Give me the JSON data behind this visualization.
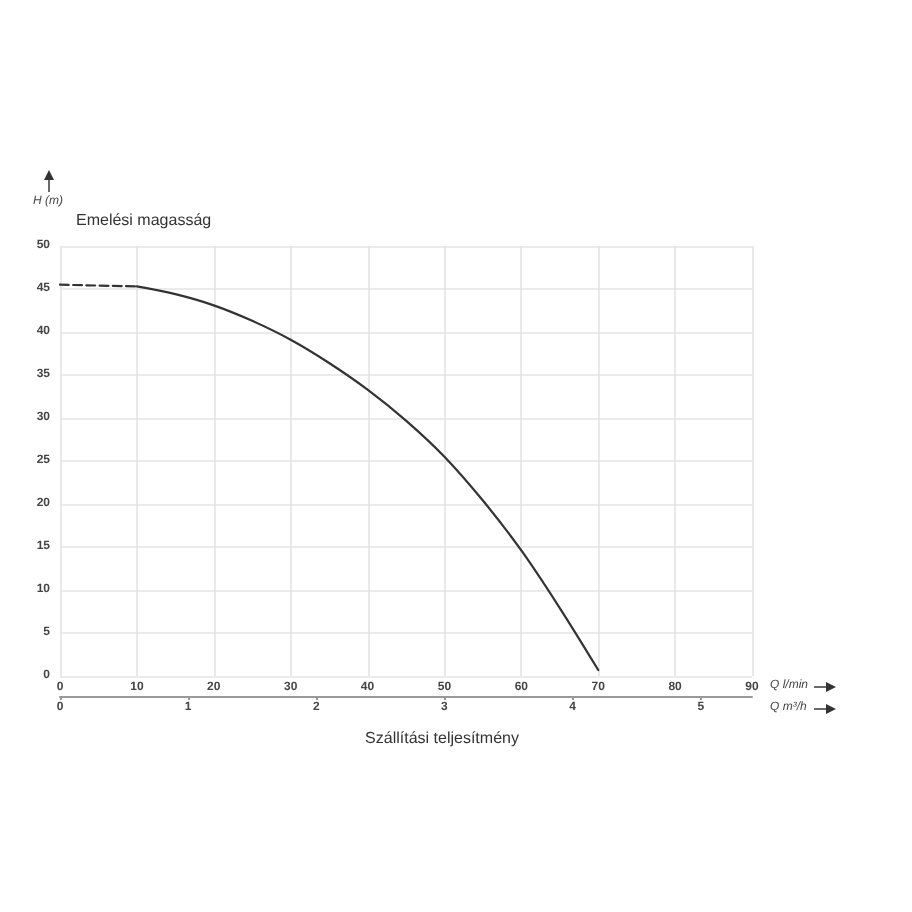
{
  "chart_data": {
    "type": "line",
    "xlabel": "Szállítási teljesítmény",
    "ylabel": "Emelési magasság",
    "annotations": [
      "H (m)",
      "Q l/min",
      "Q m³/h"
    ],
    "xlim": [
      0,
      90
    ],
    "xticks": [
      0,
      10,
      20,
      30,
      40,
      50,
      60,
      70,
      80,
      90
    ],
    "x2lim": [
      0,
      5.4
    ],
    "x2ticks": [
      0,
      1,
      2,
      3,
      4,
      5
    ],
    "ylim": [
      0,
      50
    ],
    "yticks": [
      0,
      5,
      10,
      15,
      20,
      25,
      30,
      35,
      40,
      45,
      50
    ],
    "grid": true,
    "marker": "none",
    "series": [
      {
        "color": "#333333",
        "line_style": "dashed",
        "x": [
          0,
          10
        ],
        "values": [
          45.5,
          45.3
        ]
      },
      {
        "color": "#333333",
        "line_style": "solid",
        "x": [
          10,
          15,
          20,
          25,
          30,
          35,
          40,
          45,
          50,
          55,
          60,
          65,
          70
        ],
        "values": [
          45.3,
          44.4,
          43.1,
          41.3,
          39.1,
          36.4,
          33.3,
          29.7,
          25.5,
          20.4,
          14.6,
          7.9,
          0.7
        ]
      }
    ]
  }
}
